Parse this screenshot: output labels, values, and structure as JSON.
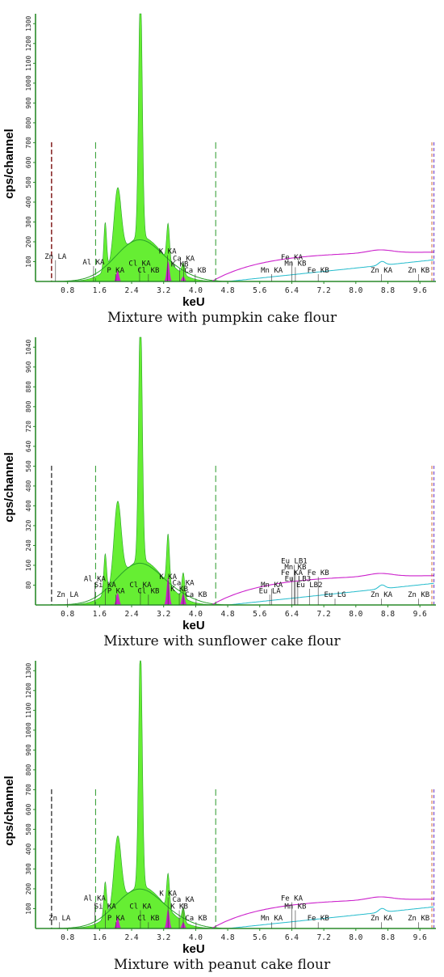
{
  "colors": {
    "spectrum": "#66ee33",
    "outline": "#2aa02a",
    "magenta": "#cc22cc",
    "cyan": "#22bbcc",
    "marker_dark": "#8a2b2b",
    "marker_gray": "#555555",
    "axis": "#2a8a2a"
  },
  "chart_data": [
    {
      "type": "area",
      "caption": "Mixture with pumpkin cake flour",
      "xlabel": "keU",
      "ylabel": "cps/channel",
      "xticks": [
        "0.8",
        "1.6",
        "2.4",
        "3.2",
        "4.0",
        "4.8",
        "5.6",
        "6.4",
        "7.2",
        "8.0",
        "8.8",
        "9.6"
      ],
      "xlim": [
        0.0,
        10.0
      ],
      "ylim": [
        0,
        1350
      ],
      "yticks": [
        "100",
        "200",
        "300",
        "400",
        "500",
        "600",
        "700",
        "800",
        "900",
        "1000",
        "1100",
        "1200",
        "1300"
      ],
      "major_peaks": [
        {
          "x": 1.74,
          "y": 240
        },
        {
          "x": 2.05,
          "y": 350
        },
        {
          "x": 2.62,
          "y": 1310
        },
        {
          "x": 3.31,
          "y": 185
        },
        {
          "x": 3.69,
          "y": 55
        }
      ],
      "element_labels": [
        {
          "text": "Zn LA",
          "x": 0.5,
          "y": 115
        },
        {
          "text": "Al KA",
          "x": 1.45,
          "y": 85
        },
        {
          "text": "P KA",
          "x": 2.0,
          "y": 45
        },
        {
          "text": "Cl KA",
          "x": 2.6,
          "y": 80
        },
        {
          "text": "Cl KB",
          "x": 2.82,
          "y": 45
        },
        {
          "text": "K KA",
          "x": 3.3,
          "y": 140
        },
        {
          "text": "Ca KA",
          "x": 3.7,
          "y": 105
        },
        {
          "text": "K KB",
          "x": 3.6,
          "y": 75
        },
        {
          "text": "Ca KB",
          "x": 3.99,
          "y": 45
        },
        {
          "text": "Fe KA",
          "x": 6.4,
          "y": 110
        },
        {
          "text": "Mn KB",
          "x": 6.49,
          "y": 80
        },
        {
          "text": "Mn KA",
          "x": 5.9,
          "y": 45
        },
        {
          "text": "Fe KB",
          "x": 7.06,
          "y": 45
        },
        {
          "text": "Zn KA",
          "x": 8.64,
          "y": 45
        },
        {
          "text": "Zn KB",
          "x": 9.57,
          "y": 45
        }
      ]
    },
    {
      "type": "area",
      "caption": "Mixture with sunflower cake flour",
      "xlabel": "keU",
      "ylabel": "cps/channel",
      "xticks": [
        "0.8",
        "1.6",
        "2.4",
        "3.2",
        "4.0",
        "4.8",
        "5.6",
        "6.4",
        "7.2",
        "8.0",
        "8.8",
        "9.6"
      ],
      "xlim": [
        0.0,
        10.0
      ],
      "ylim": [
        0,
        1080
      ],
      "yticks": [
        "80",
        "160",
        "240",
        "320",
        "400",
        "480",
        "560",
        "640",
        "720",
        "800",
        "880",
        "960",
        "1040"
      ],
      "major_peaks": [
        {
          "x": 1.74,
          "y": 160
        },
        {
          "x": 2.05,
          "y": 320
        },
        {
          "x": 2.62,
          "y": 1050
        },
        {
          "x": 3.31,
          "y": 200
        },
        {
          "x": 3.69,
          "y": 100
        }
      ],
      "element_labels": [
        {
          "text": "Zn LA",
          "x": 0.8,
          "y": 40
        },
        {
          "text": "Al KA",
          "x": 1.48,
          "y": 120
        },
        {
          "text": "Si KA",
          "x": 1.74,
          "y": 90
        },
        {
          "text": "P KA",
          "x": 2.01,
          "y": 60
        },
        {
          "text": "Cl KA",
          "x": 2.62,
          "y": 90
        },
        {
          "text": "Cl KB",
          "x": 2.82,
          "y": 60
        },
        {
          "text": "K KA",
          "x": 3.31,
          "y": 130
        },
        {
          "text": "Ca KA",
          "x": 3.69,
          "y": 100
        },
        {
          "text": "K KB",
          "x": 3.59,
          "y": 70
        },
        {
          "text": "Ca KB",
          "x": 4.01,
          "y": 40
        },
        {
          "text": "Eu LB1",
          "x": 6.46,
          "y": 210
        },
        {
          "text": "Mn KB",
          "x": 6.49,
          "y": 180
        },
        {
          "text": "Fe KA",
          "x": 6.4,
          "y": 150
        },
        {
          "text": "Fe KB",
          "x": 7.06,
          "y": 150
        },
        {
          "text": "Eu LB3",
          "x": 6.55,
          "y": 120
        },
        {
          "text": "Mn KA",
          "x": 5.9,
          "y": 90
        },
        {
          "text": "Eu LB2",
          "x": 6.84,
          "y": 90
        },
        {
          "text": "Eu LA",
          "x": 5.85,
          "y": 60
        },
        {
          "text": "Eu LG",
          "x": 7.48,
          "y": 40
        },
        {
          "text": "Zn KA",
          "x": 8.64,
          "y": 40
        },
        {
          "text": "Zn KB",
          "x": 9.57,
          "y": 40
        }
      ]
    },
    {
      "type": "area",
      "caption": "Mixture with peanut cake flour",
      "xlabel": "keU",
      "ylabel": "cps/channel",
      "xticks": [
        "0.8",
        "1.6",
        "2.4",
        "3.2",
        "4.0",
        "4.8",
        "5.6",
        "6.4",
        "7.2",
        "8.0",
        "8.8",
        "9.6"
      ],
      "xlim": [
        0.0,
        10.0
      ],
      "ylim": [
        0,
        1350
      ],
      "yticks": [
        "100",
        "200",
        "300",
        "400",
        "500",
        "600",
        "700",
        "800",
        "900",
        "1000",
        "1100",
        "1200",
        "1300"
      ],
      "major_peaks": [
        {
          "x": 1.74,
          "y": 180
        },
        {
          "x": 2.05,
          "y": 350
        },
        {
          "x": 2.62,
          "y": 1240
        },
        {
          "x": 3.31,
          "y": 175
        },
        {
          "x": 3.69,
          "y": 70
        }
      ],
      "element_labels": [
        {
          "text": "Zn LA",
          "x": 0.6,
          "y": 40
        },
        {
          "text": "Al KA",
          "x": 1.48,
          "y": 140
        },
        {
          "text": "Si KA",
          "x": 1.74,
          "y": 100
        },
        {
          "text": "P KA",
          "x": 2.01,
          "y": 40
        },
        {
          "text": "Cl KA",
          "x": 2.62,
          "y": 100
        },
        {
          "text": "Cl KB",
          "x": 2.82,
          "y": 40
        },
        {
          "text": "K KA",
          "x": 3.31,
          "y": 165
        },
        {
          "text": "Ca KA",
          "x": 3.69,
          "y": 135
        },
        {
          "text": "K KB",
          "x": 3.59,
          "y": 100
        },
        {
          "text": "Ca KB",
          "x": 4.01,
          "y": 40
        },
        {
          "text": "Fe KA",
          "x": 6.4,
          "y": 140
        },
        {
          "text": "Mn KB",
          "x": 6.49,
          "y": 100
        },
        {
          "text": "Mn KA",
          "x": 5.9,
          "y": 40
        },
        {
          "text": "Fe KB",
          "x": 7.06,
          "y": 40
        },
        {
          "text": "Zn KA",
          "x": 8.64,
          "y": 40
        },
        {
          "text": "Zn KB",
          "x": 9.57,
          "y": 40
        }
      ]
    }
  ]
}
